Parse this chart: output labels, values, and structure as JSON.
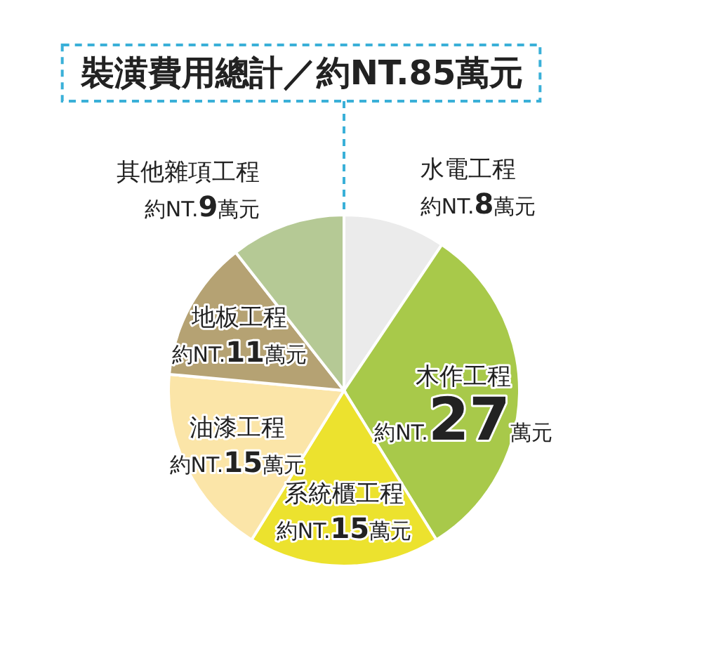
{
  "chart_data": {
    "type": "pie",
    "title": "裝潢費用總計／約NT.85萬元",
    "categories": [
      "水電工程",
      "木作工程",
      "系統櫃工程",
      "油漆工程",
      "地板工程",
      "其他雜項工程"
    ],
    "values": [
      8,
      27,
      15,
      15,
      11,
      9
    ],
    "colors": [
      "#ebebeb",
      "#a8c94a",
      "#ece22e",
      "#fbe5a8",
      "#b5a273",
      "#b5c995"
    ],
    "value_labels": [
      "約NT.**8**萬元",
      "約NT.**27**萬元",
      "約NT.**15**萬元",
      "約NT.**15**萬元",
      "約NT.**11**萬元",
      "約NT.**9**萬元"
    ]
  }
}
